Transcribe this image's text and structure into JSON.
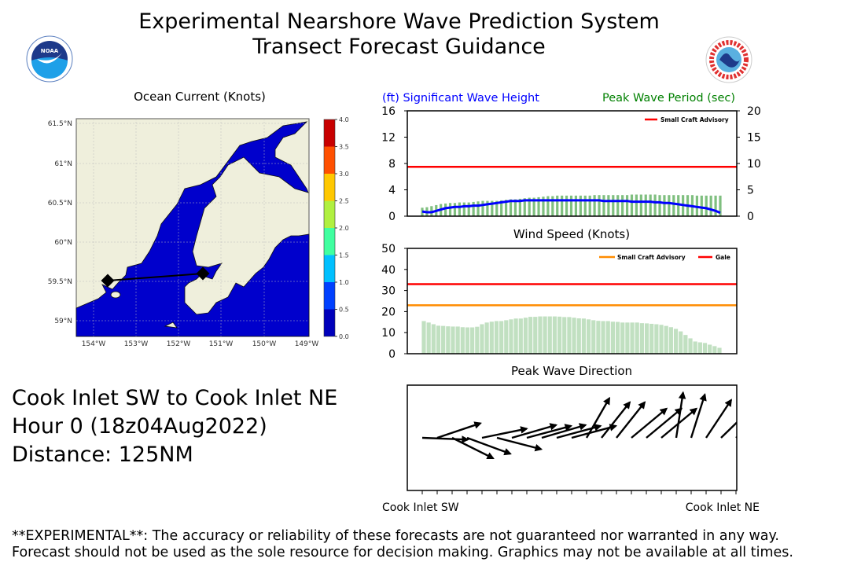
{
  "header": {
    "title_line1": "Experimental Nearshore Wave Prediction System",
    "title_line2": "Transect Forecast Guidance",
    "left_logo": "noaa-logo",
    "right_logo": "nws-logo"
  },
  "info": {
    "transect": "Cook Inlet SW to Cook Inlet NE",
    "hour": "Hour 0 (18z04Aug2022)",
    "distance": "Distance: 125NM"
  },
  "footer": {
    "line1": "**EXPERIMENTAL**: The accuracy or reliability of these forecasts are not guaranteed nor warranted in any way.",
    "line2": "Forecast should not be used as the sole resource for decision making. Graphics may not be available at all times."
  },
  "colors": {
    "wave_height": "#0000ff",
    "wave_period": "#008000",
    "period_bars": "#7fbf7f",
    "wind_bars": "#c1e0c1",
    "small_craft_red": "#ff0000",
    "small_craft_orange": "#ff8c00",
    "gale": "#ff0000",
    "ocean": "#0000cc",
    "land": "#efefdc"
  },
  "chart_data": [
    {
      "type": "map",
      "title": "Ocean Current (Knots)",
      "lat_ticks": [
        "61.5°N",
        "61°N",
        "60.5°N",
        "60°N",
        "59.5°N",
        "59°N"
      ],
      "lon_ticks": [
        "154°W",
        "153°W",
        "152°W",
        "151°W",
        "150°W",
        "149°W"
      ],
      "transect": {
        "start": {
          "lon": -153.7,
          "lat": 59.52,
          "label": "Cook Inlet SW"
        },
        "end": {
          "lon": -151.5,
          "lat": 59.62,
          "label": "Cook Inlet NE"
        }
      },
      "colorbar": {
        "ticks": [
          "0.0",
          "0.5",
          "1.0",
          "1.5",
          "2.0",
          "2.5",
          "3.0",
          "3.5",
          "4.0"
        ],
        "colors": [
          "#0000bb",
          "#0040ff",
          "#00c0ff",
          "#40ffa0",
          "#b0f040",
          "#ffc800",
          "#ff5000",
          "#c80000"
        ]
      }
    },
    {
      "type": "bar+line",
      "title_left": "(ft) Significant Wave Height",
      "title_right": "Peak Wave Period (sec)",
      "ylim_left": [
        0,
        16
      ],
      "yticks_left": [
        "0",
        "4",
        "8",
        "12",
        "16"
      ],
      "ylim_right": [
        0,
        20
      ],
      "yticks_right": [
        "0",
        "5",
        "10",
        "15",
        "20"
      ],
      "legend": "Small Craft Advisory",
      "legend_position": "top-right",
      "small_craft_advisory_ft": 7.5,
      "wave_height_ft": [
        0.7,
        0.6,
        0.6,
        0.8,
        1.0,
        1.2,
        1.3,
        1.4,
        1.4,
        1.5,
        1.5,
        1.6,
        1.6,
        1.7,
        1.8,
        1.9,
        2.0,
        2.1,
        2.2,
        2.3,
        2.3,
        2.3,
        2.4,
        2.4,
        2.4,
        2.4,
        2.4,
        2.4,
        2.4,
        2.4,
        2.4,
        2.4,
        2.4,
        2.4,
        2.4,
        2.4,
        2.4,
        2.4,
        2.4,
        2.3,
        2.3,
        2.3,
        2.3,
        2.3,
        2.3,
        2.2,
        2.2,
        2.2,
        2.2,
        2.2,
        2.1,
        2.1,
        2.0,
        2.0,
        1.9,
        1.8,
        1.7,
        1.6,
        1.5,
        1.4,
        1.3,
        1.2,
        1.0,
        0.8,
        0.5
      ],
      "peak_period_sec": [
        1.6,
        1.7,
        1.9,
        2.1,
        2.3,
        2.4,
        2.5,
        2.5,
        2.6,
        2.6,
        2.6,
        2.7,
        2.8,
        2.9,
        2.9,
        2.9,
        2.9,
        3.0,
        3.1,
        3.2,
        3.2,
        3.3,
        3.4,
        3.5,
        3.5,
        3.6,
        3.7,
        3.8,
        3.8,
        3.9,
        3.9,
        3.9,
        3.9,
        3.9,
        3.9,
        3.9,
        3.9,
        4.0,
        4.0,
        4.0,
        4.0,
        4.0,
        4.0,
        4.0,
        4.0,
        4.1,
        4.1,
        4.1,
        4.1,
        4.1,
        4.1,
        4.0,
        4.0,
        4.0,
        4.0,
        4.0,
        4.0,
        4.0,
        4.0,
        3.9,
        3.9,
        3.9,
        3.9,
        3.9,
        3.9
      ]
    },
    {
      "type": "bar",
      "title": "Wind Speed (Knots)",
      "ylim": [
        0,
        50
      ],
      "yticks": [
        "0",
        "10",
        "20",
        "30",
        "40",
        "50"
      ],
      "legend": [
        "Small Craft Advisory",
        "Gale"
      ],
      "legend_position": "top-right",
      "small_craft_advisory_kt": 23,
      "gale_kt": 33,
      "values": [
        15.5,
        14.8,
        14.0,
        13.3,
        13.2,
        13.0,
        12.9,
        12.9,
        12.6,
        12.5,
        12.5,
        12.8,
        14.0,
        14.8,
        15.2,
        15.5,
        15.5,
        15.9,
        16.3,
        16.7,
        16.7,
        17.1,
        17.5,
        17.5,
        17.7,
        17.7,
        17.7,
        17.7,
        17.6,
        17.4,
        17.4,
        17.1,
        16.8,
        16.7,
        16.3,
        15.9,
        15.6,
        15.5,
        15.5,
        15.2,
        15.1,
        14.8,
        14.8,
        14.8,
        14.8,
        14.5,
        14.4,
        14.2,
        14.0,
        13.7,
        13.2,
        12.6,
        11.8,
        10.6,
        8.9,
        7.3,
        5.8,
        5.4,
        5.1,
        4.3,
        3.6,
        2.8
      ]
    },
    {
      "type": "quiver",
      "title": "Peak Wave Direction",
      "x_labels": [
        "Cook Inlet SW",
        "Cook Inlet NE"
      ],
      "tick_count": 22,
      "arrows": [
        {
          "dx": 1.0,
          "dy": -0.04
        },
        {
          "dx": 0.95,
          "dy": 0.32
        },
        {
          "dx": 0.9,
          "dy": -0.45
        },
        {
          "dx": 0.95,
          "dy": -0.35
        },
        {
          "dx": 0.98,
          "dy": 0.2
        },
        {
          "dx": 0.97,
          "dy": -0.25
        },
        {
          "dx": 0.97,
          "dy": 0.28
        },
        {
          "dx": 0.97,
          "dy": 0.26
        },
        {
          "dx": 0.96,
          "dy": 0.28
        },
        {
          "dx": 0.96,
          "dy": 0.26
        },
        {
          "dx": 0.97,
          "dy": 0.26
        },
        {
          "dx": 0.5,
          "dy": 0.87
        },
        {
          "dx": 0.62,
          "dy": 0.78
        },
        {
          "dx": 0.62,
          "dy": 0.78
        },
        {
          "dx": 0.77,
          "dy": 0.64
        },
        {
          "dx": 0.77,
          "dy": 0.64
        },
        {
          "dx": 0.77,
          "dy": 0.64
        },
        {
          "dx": 0.15,
          "dy": 0.99
        },
        {
          "dx": 0.3,
          "dy": 0.95
        },
        {
          "dx": 0.55,
          "dy": 0.83
        },
        {
          "dx": 0.72,
          "dy": 0.7
        },
        {
          "dx": 0.77,
          "dy": 0.64
        },
        {
          "dx": 0.77,
          "dy": 0.64
        }
      ]
    }
  ]
}
